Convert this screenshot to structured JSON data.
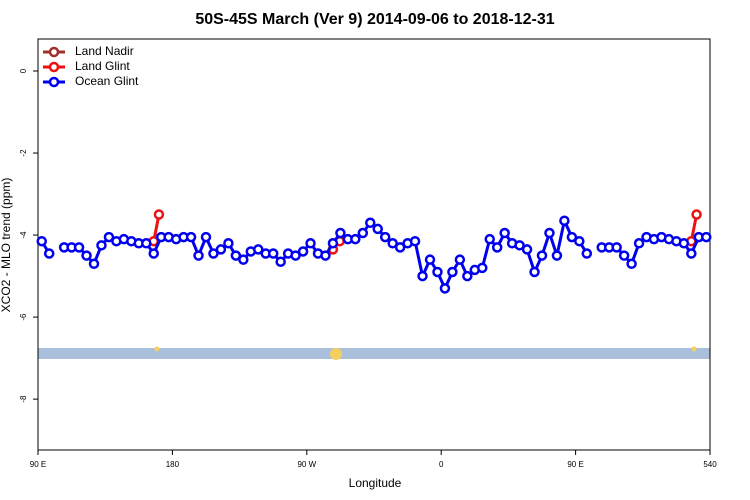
{
  "chart_data": {
    "type": "line",
    "title": "50S-45S March (Ver 9)   2014-09-06 to 2018-12-31",
    "xlabel": "Longitude",
    "ylabel": "XCO2 - MLO trend (ppm)",
    "xlim": [
      90,
      540
    ],
    "ylim": [
      -9.24,
      0.78
    ],
    "xticks": [
      {
        "value": 90,
        "label": "90 E"
      },
      180,
      {
        "value": 270,
        "label": "90 W"
      },
      {
        "value": 360,
        "label": "0"
      },
      {
        "value": 450,
        "label": "90 E"
      },
      540
    ],
    "yticks": [
      0,
      -2,
      -4,
      -6,
      -8
    ],
    "legend": "top-left",
    "series": [
      {
        "name": "Land Nadir",
        "color": "#a0302a",
        "x": [],
        "values": []
      },
      {
        "name": "Land Glint",
        "color": "#ee1111",
        "x": [
          167.5,
          171,
          230,
          287.5,
          292,
          410,
          527.5,
          531
        ],
        "values": [
          -4.15,
          -3.5,
          null,
          -4.35,
          -4.15,
          null,
          -4.15,
          -3.5
        ]
      },
      {
        "name": "Ocean Glint",
        "color": "#0000ee",
        "x": [
          92.5,
          97.5,
          102.5,
          107.5,
          112.5,
          117.5,
          122.5,
          127.5,
          132.5,
          137.5,
          142.5,
          147.5,
          152.5,
          157.5,
          162.5,
          167.5,
          172.5,
          177.5,
          182.5,
          187.5,
          192.5,
          197.5,
          202.5,
          207.5,
          212.5,
          217.5,
          222.5,
          227.5,
          232.5,
          237.5,
          242.5,
          247.5,
          252.5,
          257.5,
          262.5,
          267.5,
          272.5,
          277.5,
          282.5,
          287.5,
          292.5,
          297.5,
          302.5,
          307.5,
          312.5,
          317.5,
          322.5,
          327.5,
          332.5,
          337.5,
          342.5,
          347.5,
          352.5,
          357.5,
          362.5,
          367.5,
          372.5,
          377.5,
          382.5,
          387.5,
          392.5,
          397.5,
          402.5,
          407.5,
          412.5,
          417.5,
          422.5,
          427.5,
          432.5,
          437.5,
          442.5,
          447.5,
          452.5,
          457.5,
          462.5,
          467.5,
          472.5,
          477.5,
          482.5,
          487.5,
          492.5,
          497.5,
          502.5,
          507.5,
          512.5,
          517.5,
          522.5,
          527.5,
          532.5,
          537.5
        ],
        "values": [
          -4.15,
          -4.45,
          null,
          -4.3,
          -4.3,
          -4.3,
          -4.5,
          -4.7,
          -4.25,
          -4.05,
          -4.15,
          -4.1,
          -4.15,
          -4.2,
          -4.2,
          -4.45,
          -4.05,
          -4.05,
          -4.1,
          -4.05,
          -4.05,
          -4.5,
          -4.05,
          -4.45,
          -4.35,
          -4.2,
          -4.5,
          -4.6,
          -4.4,
          -4.35,
          -4.45,
          -4.45,
          -4.65,
          -4.45,
          -4.5,
          -4.4,
          -4.2,
          -4.45,
          -4.5,
          -4.2,
          -3.95,
          -4.1,
          -4.1,
          -3.95,
          -3.7,
          -3.85,
          -4.05,
          -4.2,
          -4.3,
          -4.2,
          -4.15,
          -5.0,
          -4.6,
          -4.9,
          -5.3,
          -4.9,
          -4.6,
          -5.0,
          -4.85,
          -4.8,
          -4.1,
          -4.3,
          -3.95,
          -4.2,
          -4.25,
          -4.35,
          -4.9,
          -4.5,
          -3.95,
          -4.5,
          -3.65,
          -4.05,
          -4.15,
          -4.45,
          null,
          -4.3,
          -4.3,
          -4.3,
          -4.5,
          -4.7,
          -4.2,
          -4.05,
          -4.1,
          -4.05,
          -4.1,
          -4.15,
          -4.2,
          -4.45,
          -4.05,
          -4.05
        ]
      }
    ]
  }
}
